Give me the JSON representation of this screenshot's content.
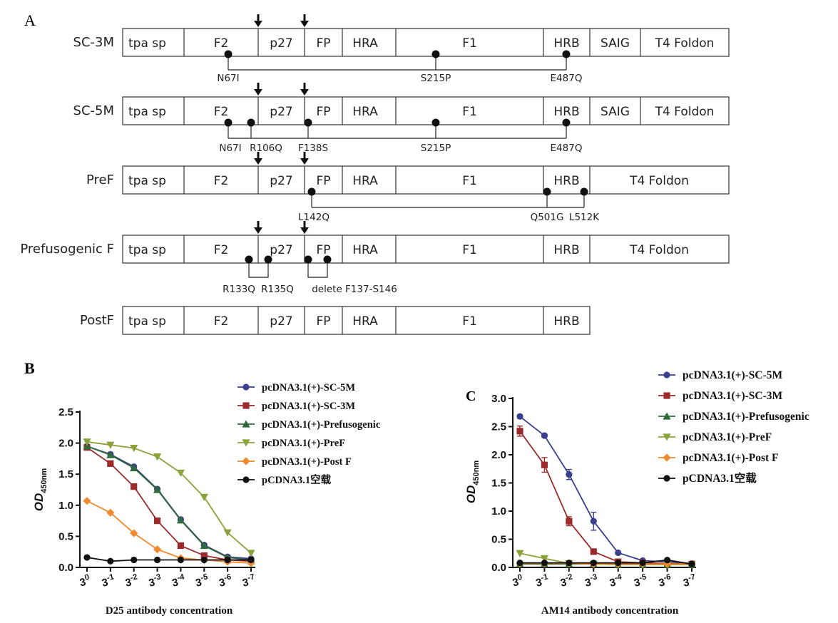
{
  "panel_labels": {
    "a": "A",
    "b": "B",
    "c": "C"
  },
  "constructs": [
    {
      "name": "SC-3M",
      "domains": [
        "tpa sp",
        "F2",
        "p27",
        "FP",
        "HRA",
        "F1",
        "HRB",
        "SAIG",
        "T4 Foldon"
      ],
      "mutations": [
        "N67I",
        "S215P",
        "E487Q"
      ]
    },
    {
      "name": "SC-5M",
      "domains": [
        "tpa sp",
        "F2",
        "p27",
        "FP",
        "HRA",
        "F1",
        "HRB",
        "SAIG",
        "T4 Foldon"
      ],
      "mutations": [
        "N67I",
        "R106Q",
        "F138S",
        "S215P",
        "E487Q"
      ]
    },
    {
      "name": "PreF",
      "domains": [
        "tpa sp",
        "F2",
        "p27",
        "FP",
        "HRA",
        "F1",
        "HRB",
        "T4 Foldon"
      ],
      "mutations": [
        "L142Q",
        "Q501G",
        "L512K"
      ]
    },
    {
      "name": "Prefusogenic F",
      "domains": [
        "tpa sp",
        "F2",
        "p27",
        "FP",
        "HRA",
        "F1",
        "HRB",
        "T4 Foldon"
      ],
      "mutations": [
        "R133Q",
        "R135Q",
        "delete F137-S146"
      ]
    },
    {
      "name": "PostF",
      "domains": [
        "tpa sp",
        "F2",
        "p27",
        "FP",
        "HRA",
        "F1",
        "HRB"
      ],
      "mutations": []
    }
  ],
  "chart_data": [
    {
      "type": "line",
      "panel": "B",
      "title": "",
      "ylabel": "OD450nm",
      "ylabel_main": "OD",
      "ylabel_sub": "450nm",
      "xlabel": "D25 antibody concentration",
      "x_ticks": [
        "3^0",
        "3^-1",
        "3^-2",
        "3^-3",
        "3^-4",
        "3^-5",
        "3^-6",
        "3^-7"
      ],
      "x_tick_base": "3",
      "x_tick_exps": [
        "0",
        "-1",
        "-2",
        "-3",
        "-4",
        "-5",
        "-6",
        "-7"
      ],
      "ylim": [
        0,
        2.5
      ],
      "y_ticks": [
        "0.0",
        "0.5",
        "1.0",
        "1.5",
        "2.0",
        "2.5"
      ],
      "series": [
        {
          "name": "pcDNA3.1(+)-SC-5M",
          "color": "#3a3f8f",
          "marker": "circle",
          "values": [
            1.95,
            1.82,
            1.62,
            1.26,
            0.77,
            0.36,
            0.17,
            0.14
          ]
        },
        {
          "name": "pcDNA3.1(+)-SC-3M",
          "color": "#9b2a2a",
          "marker": "square",
          "values": [
            1.93,
            1.67,
            1.3,
            0.75,
            0.35,
            0.19,
            0.12,
            0.1
          ]
        },
        {
          "name": "pcDNA3.1(+)-Prefusogenic",
          "color": "#2e6b3a",
          "marker": "triangle-up",
          "values": [
            1.95,
            1.81,
            1.6,
            1.25,
            0.76,
            0.35,
            0.16,
            0.12
          ]
        },
        {
          "name": "pcDNA3.1(+)-PreF",
          "color": "#8aa23a",
          "marker": "triangle-down",
          "values": [
            2.02,
            1.97,
            1.92,
            1.78,
            1.52,
            1.13,
            0.56,
            0.23
          ]
        },
        {
          "name": "pcDNA3.1(+)-Post F",
          "color": "#f08a2e",
          "marker": "diamond",
          "values": [
            1.07,
            0.88,
            0.55,
            0.29,
            0.15,
            0.12,
            0.09,
            0.07
          ]
        },
        {
          "name": "pCDNA3.1空载",
          "color": "#111111",
          "marker": "circle",
          "values": [
            0.16,
            0.1,
            0.12,
            0.12,
            0.12,
            0.12,
            0.12,
            0.12
          ]
        }
      ]
    },
    {
      "type": "line",
      "panel": "C",
      "title": "",
      "ylabel": "OD450nm",
      "ylabel_main": "OD",
      "ylabel_sub": "450nm",
      "xlabel": "AM14 antibody concentration",
      "x_ticks": [
        "3^0",
        "3^-1",
        "3^-2",
        "3^-3",
        "3^-4",
        "3^-5",
        "3^-6",
        "3^-7"
      ],
      "x_tick_base": "3",
      "x_tick_exps": [
        "0",
        "-1",
        "-2",
        "-3",
        "-4",
        "-5",
        "-6",
        "-7"
      ],
      "ylim": [
        0,
        3.0
      ],
      "y_ticks": [
        "0.0",
        "0.5",
        "1.0",
        "1.5",
        "2.0",
        "2.5",
        "3.0"
      ],
      "series": [
        {
          "name": "pcDNA3.1(+)-SC-5M",
          "color": "#3a3f8f",
          "marker": "circle",
          "values": [
            2.68,
            2.34,
            1.65,
            0.82,
            0.26,
            0.12,
            0.1,
            0.07
          ],
          "errors": [
            0.03,
            0.03,
            0.09,
            0.16,
            0.02,
            0.01,
            0.01,
            0.01
          ]
        },
        {
          "name": "pcDNA3.1(+)-SC-3M",
          "color": "#9b2a2a",
          "marker": "square",
          "values": [
            2.42,
            1.82,
            0.82,
            0.28,
            0.1,
            0.08,
            0.07,
            0.06
          ],
          "errors": [
            0.09,
            0.13,
            0.08,
            0.02,
            0.01,
            0.01,
            0.01,
            0.01
          ]
        },
        {
          "name": "pcDNA3.1(+)-Prefusogenic",
          "color": "#2e6b3a",
          "marker": "triangle-up",
          "values": [
            0.06,
            0.06,
            0.06,
            0.06,
            0.05,
            0.05,
            0.05,
            0.05
          ]
        },
        {
          "name": "pcDNA3.1(+)-PreF",
          "color": "#8aa23a",
          "marker": "triangle-down",
          "values": [
            0.25,
            0.16,
            0.07,
            0.06,
            0.05,
            0.05,
            0.05,
            0.05
          ]
        },
        {
          "name": "pcDNA3.1(+)-Post F",
          "color": "#f08a2e",
          "marker": "diamond",
          "values": [
            0.07,
            0.07,
            0.07,
            0.06,
            0.06,
            0.06,
            0.06,
            0.06
          ]
        },
        {
          "name": "pCDNA3.1空载",
          "color": "#111111",
          "marker": "circle",
          "values": [
            0.08,
            0.08,
            0.08,
            0.08,
            0.08,
            0.08,
            0.13,
            0.06
          ]
        }
      ]
    }
  ]
}
